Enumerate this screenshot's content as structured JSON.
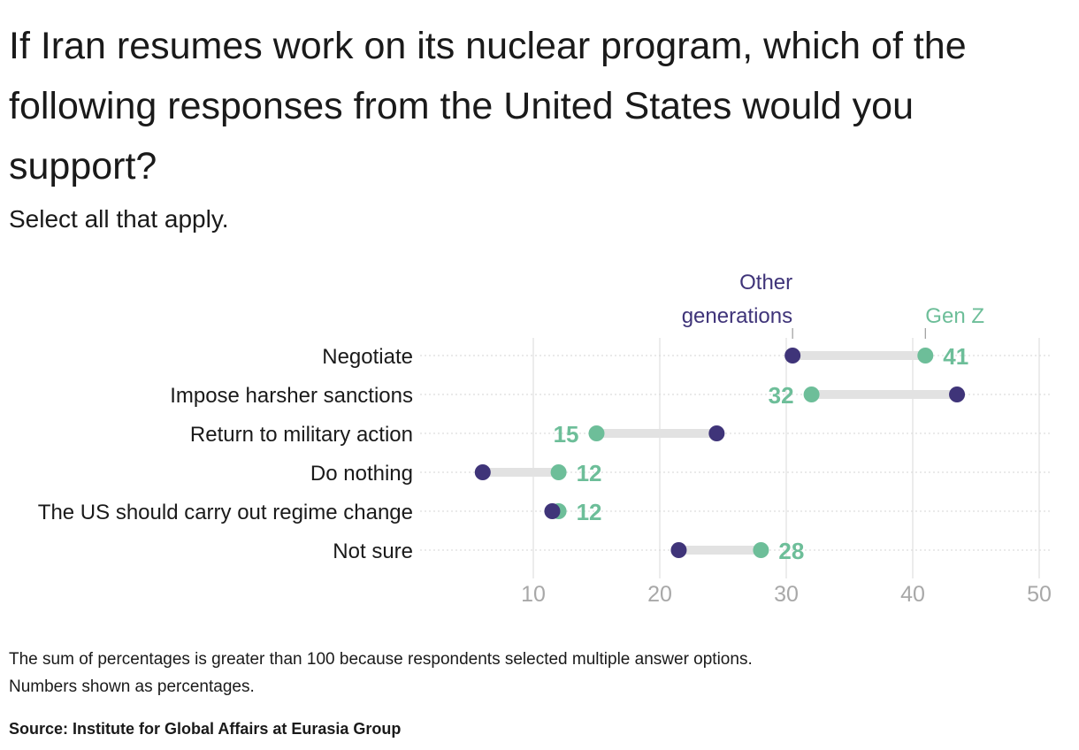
{
  "header": {
    "title": "If Iran resumes work on its nuclear program, which of the following responses from the United States would you support?",
    "subtitle": "Select all that apply."
  },
  "footer": {
    "note_1": "The sum of percentages is greater than 100 because respondents selected multiple answer options.",
    "note_2": "Numbers shown as percentages.",
    "source": "Source: Institute for Global Affairs at Eurasia Group"
  },
  "colors": {
    "gen_z": "#6dbe99",
    "other_generations": "#3f3479",
    "connector": "#e2e2e2",
    "gridline": "#e0e0e0",
    "row_guide": "#d6d6d6",
    "tick_label": "#a8a8a8",
    "category_label": "#1a1a1a"
  },
  "chart_data": {
    "type": "dumbbell",
    "categories": [
      "Negotiate",
      "Impose harsher sanctions",
      "Return to military action",
      "Do nothing",
      "The US should carry out regime change",
      "Not sure"
    ],
    "series": [
      {
        "name": "Gen Z",
        "values": [
          41,
          32,
          15,
          12,
          12,
          28
        ],
        "labels": [
          "41",
          "32",
          "15",
          "12",
          "12",
          "28"
        ]
      },
      {
        "name": "Other generations",
        "values": [
          30.5,
          43.5,
          24.5,
          6,
          11.5,
          21.5
        ]
      }
    ],
    "legend_labels": {
      "other_generations": [
        "Other",
        "generations"
      ],
      "gen_z": [
        "Gen Z"
      ]
    },
    "x_ticks": [
      10,
      20,
      30,
      40,
      50
    ],
    "x_tick_labels": [
      "10",
      "20",
      "30",
      "40",
      "50"
    ],
    "xlim": [
      1,
      51
    ],
    "grid": true,
    "legend_placement": "top, over the first row",
    "value_label_unit": "percent"
  }
}
